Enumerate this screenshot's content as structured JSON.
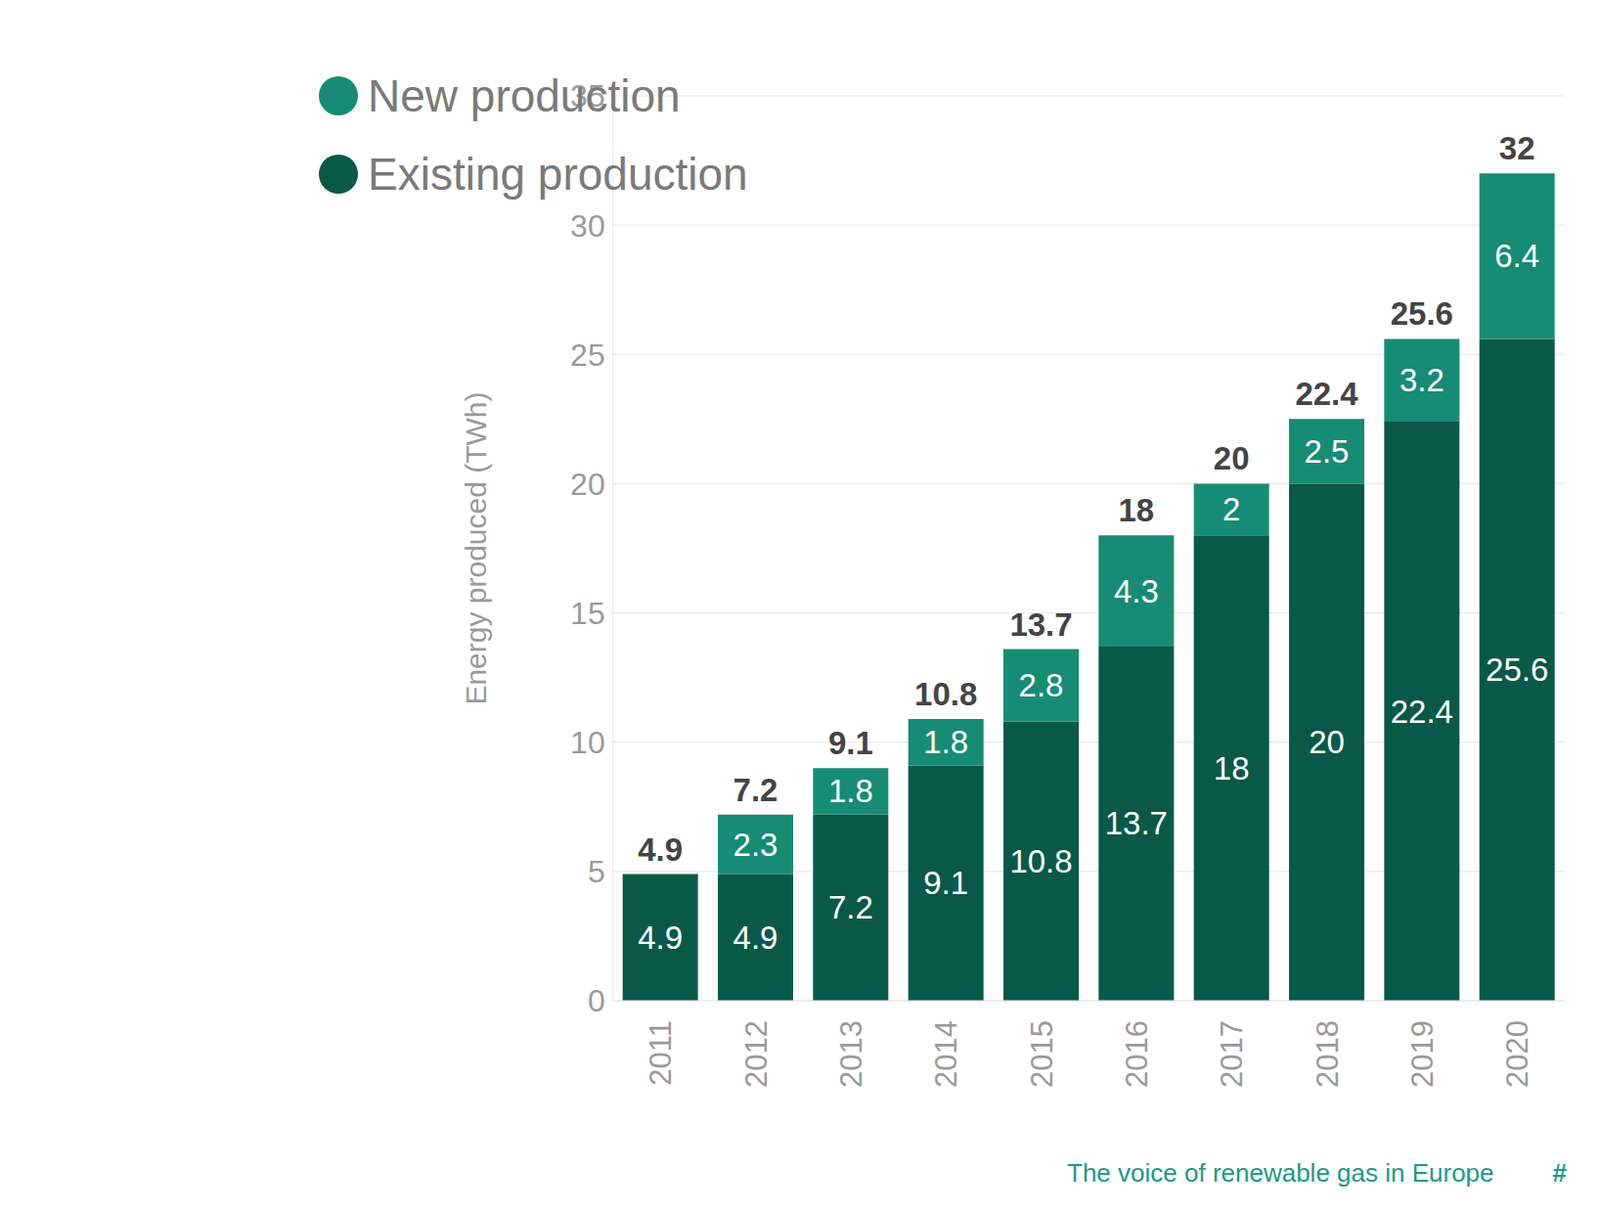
{
  "chart_data": {
    "type": "bar",
    "stacked": true,
    "data_labels": true,
    "grid": true,
    "legend": "upper left",
    "y_label": "Energy produced (TWh)",
    "categories": [
      "2011",
      "2012",
      "2013",
      "2014",
      "2015",
      "2016",
      "2017",
      "2018",
      "2019",
      "2020"
    ],
    "series": [
      {
        "name": "Existing production",
        "color": "#08594a",
        "values": [
          4.9,
          4.9,
          7.2,
          9.1,
          10.8,
          13.7,
          18,
          20,
          22.4,
          25.6
        ]
      },
      {
        "name": "New production",
        "color": "#178c74",
        "values": [
          null,
          2.3,
          1.8,
          1.8,
          2.8,
          4.3,
          2,
          2.5,
          3.2,
          6.4
        ]
      }
    ],
    "totals": [
      4.9,
      7.2,
      9.1,
      10.8,
      13.7,
      18,
      20,
      22.4,
      25.6,
      32
    ],
    "ylim": [
      0,
      35
    ],
    "yticks": [
      0,
      5,
      10,
      15,
      20,
      25,
      30,
      35
    ],
    "annotations": [
      "The voice of renewable gas in Europe",
      "#"
    ]
  }
}
